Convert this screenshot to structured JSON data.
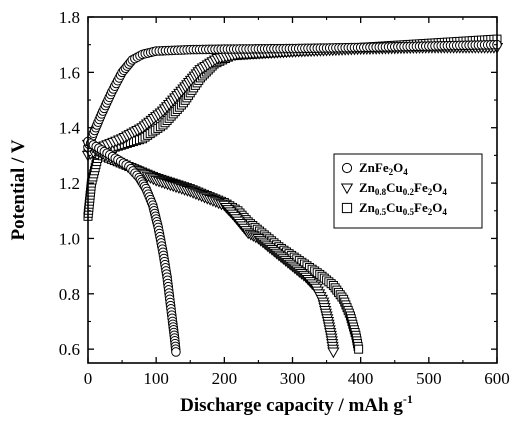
{
  "chart_data": {
    "type": "scatter",
    "xlabel": "Discharge capacity / mAh g",
    "xlabel_sup": "-1",
    "ylabel": "Potential / V",
    "xlim": [
      0,
      600
    ],
    "ylim": [
      0.55,
      1.8
    ],
    "xticks": [
      "0",
      "100",
      "200",
      "300",
      "400",
      "500",
      "600"
    ],
    "yticks": [
      "0.6",
      "0.8",
      "1.0",
      "1.2",
      "1.4",
      "1.6",
      "1.8"
    ],
    "legend_position": "center-right",
    "series": [
      {
        "name": "ZnFe2O4",
        "legend_parts": [
          [
            "Zn",
            ""
          ],
          [
            "Fe",
            ""
          ],
          [
            "2",
            "sub"
          ],
          [
            "O",
            ""
          ],
          [
            "4",
            "sub"
          ]
        ],
        "marker": "circle",
        "discharge": [
          [
            0,
            1.35
          ],
          [
            20,
            1.32
          ],
          [
            40,
            1.29
          ],
          [
            60,
            1.26
          ],
          [
            75,
            1.22
          ],
          [
            85,
            1.18
          ],
          [
            95,
            1.12
          ],
          [
            103,
            1.04
          ],
          [
            110,
            0.95
          ],
          [
            116,
            0.86
          ],
          [
            120,
            0.78
          ],
          [
            124,
            0.7
          ],
          [
            127,
            0.64
          ],
          [
            129,
            0.59
          ]
        ],
        "charge": [
          [
            0,
            1.33
          ],
          [
            8,
            1.38
          ],
          [
            20,
            1.45
          ],
          [
            35,
            1.53
          ],
          [
            50,
            1.6
          ],
          [
            65,
            1.645
          ],
          [
            80,
            1.665
          ],
          [
            100,
            1.677
          ],
          [
            150,
            1.682
          ],
          [
            200,
            1.684
          ],
          [
            300,
            1.686
          ],
          [
            400,
            1.69
          ],
          [
            500,
            1.695
          ],
          [
            600,
            1.7
          ]
        ]
      },
      {
        "name": "Zn0.8Cu0.2Fe2O4",
        "legend_parts": [
          [
            "Zn",
            ""
          ],
          [
            "0.8",
            "sub"
          ],
          [
            "Cu",
            ""
          ],
          [
            "0.2",
            "sub"
          ],
          [
            "Fe",
            ""
          ],
          [
            "2",
            "sub"
          ],
          [
            "O",
            ""
          ],
          [
            "4",
            "sub"
          ]
        ],
        "marker": "triangle-down",
        "discharge": [
          [
            0,
            1.34
          ],
          [
            25,
            1.3
          ],
          [
            50,
            1.27
          ],
          [
            100,
            1.21
          ],
          [
            150,
            1.17
          ],
          [
            200,
            1.12
          ],
          [
            215,
            1.08
          ],
          [
            235,
            1.02
          ],
          [
            250,
            1.0
          ],
          [
            280,
            0.94
          ],
          [
            300,
            0.9
          ],
          [
            320,
            0.86
          ],
          [
            335,
            0.82
          ],
          [
            345,
            0.77
          ],
          [
            352,
            0.7
          ],
          [
            357,
            0.64
          ],
          [
            360,
            0.59
          ]
        ],
        "charge": [
          [
            0,
            1.3
          ],
          [
            20,
            1.33
          ],
          [
            50,
            1.36
          ],
          [
            80,
            1.4
          ],
          [
            110,
            1.46
          ],
          [
            140,
            1.54
          ],
          [
            165,
            1.61
          ],
          [
            190,
            1.65
          ],
          [
            220,
            1.665
          ],
          [
            300,
            1.675
          ],
          [
            400,
            1.685
          ],
          [
            500,
            1.69
          ],
          [
            600,
            1.69
          ]
        ]
      },
      {
        "name": "Zn0.5Cu0.5Fe2O4",
        "legend_parts": [
          [
            "Zn",
            ""
          ],
          [
            "0.5",
            "sub"
          ],
          [
            "Cu",
            ""
          ],
          [
            "0.5",
            "sub"
          ],
          [
            "Fe",
            ""
          ],
          [
            "2",
            "sub"
          ],
          [
            "O",
            ""
          ],
          [
            "4",
            "sub"
          ]
        ],
        "marker": "square",
        "discharge": [
          [
            0,
            1.32
          ],
          [
            30,
            1.29
          ],
          [
            60,
            1.26
          ],
          [
            100,
            1.22
          ],
          [
            150,
            1.18
          ],
          [
            200,
            1.13
          ],
          [
            220,
            1.1
          ],
          [
            235,
            1.06
          ],
          [
            255,
            1.02
          ],
          [
            280,
            0.97
          ],
          [
            310,
            0.92
          ],
          [
            340,
            0.87
          ],
          [
            360,
            0.83
          ],
          [
            375,
            0.78
          ],
          [
            385,
            0.72
          ],
          [
            393,
            0.65
          ],
          [
            397,
            0.6
          ]
        ],
        "charge": [
          [
            0,
            1.08
          ],
          [
            5,
            1.2
          ],
          [
            15,
            1.3
          ],
          [
            40,
            1.33
          ],
          [
            80,
            1.36
          ],
          [
            110,
            1.41
          ],
          [
            140,
            1.49
          ],
          [
            165,
            1.58
          ],
          [
            185,
            1.63
          ],
          [
            210,
            1.66
          ],
          [
            300,
            1.675
          ],
          [
            400,
            1.69
          ],
          [
            500,
            1.705
          ],
          [
            600,
            1.72
          ]
        ]
      }
    ]
  }
}
